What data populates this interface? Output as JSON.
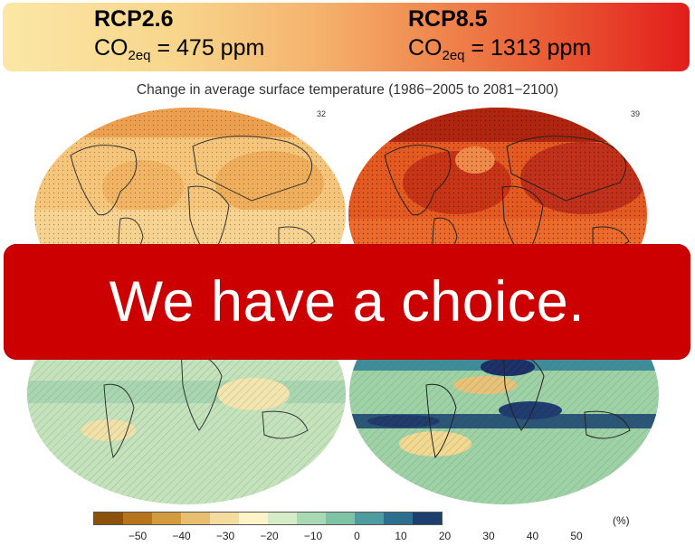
{
  "scenarios": {
    "left": {
      "name": "RCP2.6",
      "co2_prefix": "CO",
      "co2_sub": "2eq",
      "co2_value": " = 475 ppm"
    },
    "right": {
      "name": "RCP8.5",
      "co2_prefix": "CO",
      "co2_sub": "2eq",
      "co2_value": " = 1313 ppm"
    }
  },
  "map_title": "Change in average surface temperature (1986−2005 to 2081−2100)",
  "map_counts": {
    "left": "32",
    "right": "39"
  },
  "banner_text": "We have a choice.",
  "colorbar": {
    "unit": "(%)",
    "ticks": [
      "−50",
      "−40",
      "−30",
      "−20",
      "−10",
      "0",
      "10",
      "20",
      "30",
      "40",
      "50"
    ],
    "colors": [
      "#8c510a",
      "#b8741a",
      "#d49a3e",
      "#e8bf70",
      "#f3dc9e",
      "#fdf3c6",
      "#d6ecc6",
      "#a9d9b3",
      "#7fc3a7",
      "#4f9ca0",
      "#2d6f8e",
      "#1d3f6e"
    ]
  },
  "colors": {
    "choice_bg": "#cc0000",
    "rcp26_map": "#f3c77d",
    "rcp85_map": "#e4501e",
    "precip_base": "#b9dcb5"
  }
}
